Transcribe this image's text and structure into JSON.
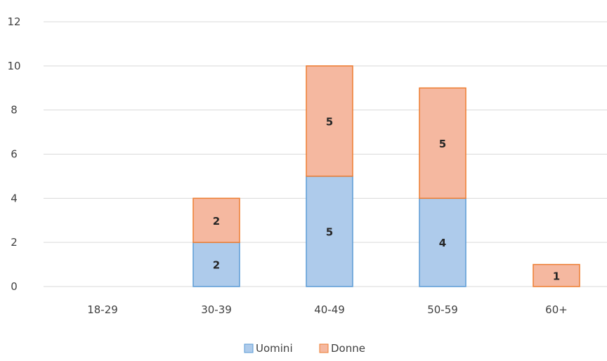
{
  "chart_data": {
    "type": "bar",
    "stacked": true,
    "categories": [
      "18-29",
      "30-39",
      "40-49",
      "50-59",
      "60+"
    ],
    "series": [
      {
        "name": "Uomini",
        "values": [
          0,
          2,
          5,
          4,
          0
        ],
        "labels": [
          "",
          "2",
          "5",
          "4",
          ""
        ],
        "fill": "#aecbeb",
        "stroke": "#5b9bd5"
      },
      {
        "name": "Donne",
        "values": [
          0,
          2,
          5,
          5,
          1
        ],
        "labels": [
          "",
          "2",
          "5",
          "5",
          "1"
        ],
        "fill": "#f5b8a0",
        "stroke": "#ed7d31"
      }
    ],
    "ylim": [
      0,
      12
    ],
    "yticks": [
      "0",
      "2",
      "4",
      "6",
      "8",
      "10",
      "12"
    ],
    "grid": true,
    "legend": "bottom",
    "gridline_color": "#d9d9d9"
  }
}
